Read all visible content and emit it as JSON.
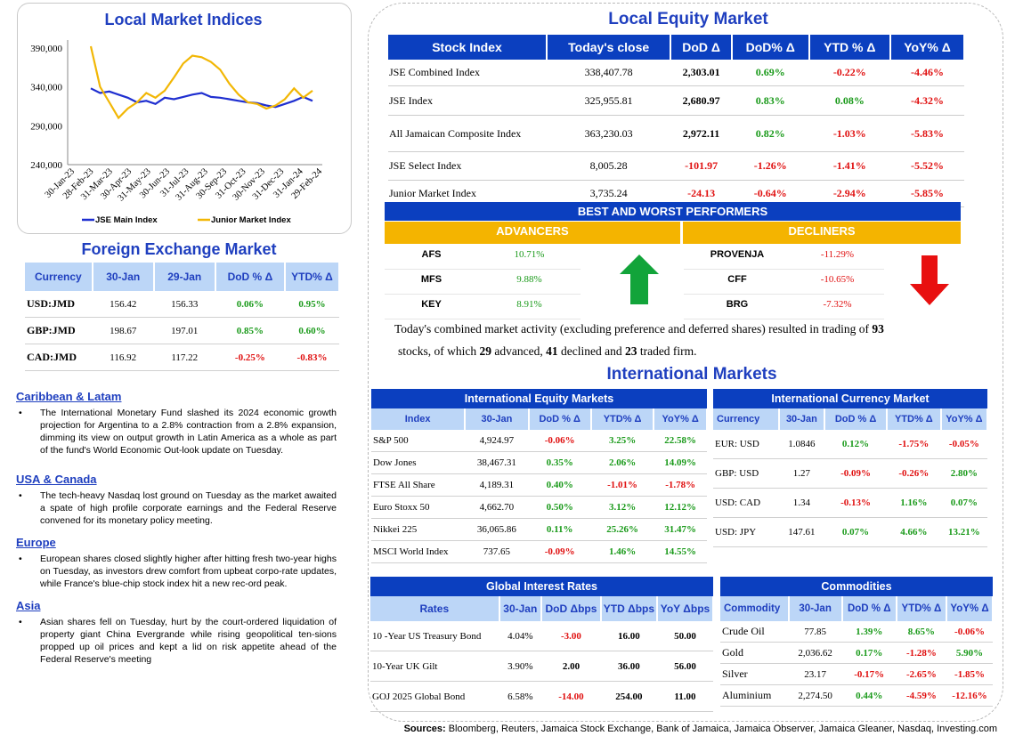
{
  "chart_data": {
    "type": "line",
    "title": "Local Market Indices",
    "y_ticks": [
      "240,000",
      "290,000",
      "340,000",
      "390,000"
    ],
    "ylim": [
      240000,
      400000
    ],
    "x_ticks": [
      "30-Jan-23",
      "28-Feb-23",
      "31-Mar-23",
      "30-Apr-23",
      "31-May-23",
      "30-Jun-23",
      "31-Jul-23",
      "31-Aug-23",
      "30-Sep-23",
      "31-Oct-23",
      "30-Nov-23",
      "31-Dec-23",
      "31-Jan-24",
      "29-Feb-24"
    ],
    "series": [
      {
        "name": "JSE Main Index",
        "color": "#1f2fd0",
        "values": [
          338000,
          332000,
          334000,
          330000,
          326000,
          320000,
          322000,
          318000,
          326000,
          324000,
          327000,
          330000,
          332000,
          327000,
          326000,
          324000,
          322000,
          320000,
          319000,
          316000,
          314000,
          318000,
          322000,
          327000,
          322000
        ]
      },
      {
        "name": "Junior Market Index",
        "color": "#f2b705",
        "values": [
          392000,
          340000,
          320000,
          300000,
          312000,
          320000,
          332000,
          326000,
          335000,
          352000,
          370000,
          380000,
          378000,
          372000,
          362000,
          344000,
          330000,
          320000,
          318000,
          312000,
          316000,
          324000,
          338000,
          326000,
          335000
        ]
      }
    ]
  },
  "fx": {
    "title": "Foreign Exchange Market",
    "headers": [
      "Currency",
      "30-Jan",
      "29-Jan",
      "DoD % Δ",
      "YTD% Δ"
    ],
    "rows": [
      [
        "USD:JMD",
        "156.42",
        "156.33",
        "0.06%",
        "0.95%"
      ],
      [
        "GBP:JMD",
        "198.67",
        "197.01",
        "0.85%",
        "0.60%"
      ],
      [
        "CAD:JMD",
        "116.92",
        "117.22",
        "-0.25%",
        "-0.83%"
      ]
    ]
  },
  "news": [
    {
      "region": "Caribbean & Latam",
      "text": "The International Monetary Fund slashed its 2024 economic growth projection for Argentina to a 2.8% contraction from a 2.8% expansion, dimming its view on output growth in Latin America as a whole as part of the fund's World Economic Out-look update on Tuesday."
    },
    {
      "region": "USA & Canada",
      "text": "The tech-heavy Nasdaq lost ground on Tuesday as the market awaited a spate of high profile corporate earnings and the Federal Reserve convened for its monetary policy meeting."
    },
    {
      "region": "Europe",
      "text": "European shares closed slightly higher after hitting fresh two-year highs on Tuesday, as investors drew comfort from upbeat corpo-rate updates, while France's blue-chip stock index hit a new rec-ord peak."
    },
    {
      "region": "Asia",
      "text": "Asian shares fell on Tuesday, hurt by the court-ordered liquidation of property giant China Evergrande while rising geopolitical ten-sions propped up oil prices and kept a lid on risk appetite ahead of the Federal Reserve's meeting"
    }
  ],
  "equity": {
    "title": "Local Equity Market",
    "headers": [
      "Stock Index",
      "Today's close",
      "DoD  Δ",
      "DoD% Δ",
      "YTD % Δ",
      "YoY% Δ"
    ],
    "rows": [
      [
        "JSE Combined Index",
        "338,407.78",
        "2,303.01",
        "0.69%",
        "-0.22%",
        "-4.46%"
      ],
      [
        "JSE Index",
        "325,955.81",
        "2,680.97",
        "0.83%",
        "0.08%",
        "-4.32%"
      ],
      [
        "All Jamaican Composite Index",
        "363,230.03",
        "2,972.11",
        "0.82%",
        "-1.03%",
        "-5.83%"
      ],
      [
        "JSE Select Index",
        "8,005.28",
        "-101.97",
        "-1.26%",
        "-1.41%",
        "-5.52%"
      ],
      [
        "Junior Market Index",
        "3,735.24",
        "-24.13",
        "-0.64%",
        "-2.94%",
        "-5.85%"
      ]
    ]
  },
  "performers": {
    "title": "BEST AND WORST PERFORMERS",
    "advancers_label": "ADVANCERS",
    "decliners_label": "DECLINERS",
    "advancers": [
      [
        "AFS",
        "10.71%"
      ],
      [
        "MFS",
        "9.88%"
      ],
      [
        "KEY",
        "8.91%"
      ]
    ],
    "decliners": [
      [
        "PROVENJA",
        "-11.29%"
      ],
      [
        "CFF",
        "-10.65%"
      ],
      [
        "BRG",
        "-7.32%"
      ]
    ]
  },
  "summary": {
    "p1": "Today's combined market activity (excluding preference and deferred shares) resulted in trading of ",
    "total": "93",
    "p2": "stocks, of which ",
    "adv": "29",
    "p3": " advanced, ",
    "dec": "41",
    "p4": " declined and ",
    "firm": "23",
    "p5": " traded firm."
  },
  "intl": {
    "title": "International Markets",
    "equity_title": "International Equity Markets",
    "equity_headers": [
      "Index",
      "30-Jan",
      "DoD % Δ",
      "YTD% Δ",
      "YoY% Δ"
    ],
    "equity_rows": [
      [
        "S&P 500",
        "4,924.97",
        "-0.06%",
        "3.25%",
        "22.58%"
      ],
      [
        "Dow Jones",
        "38,467.31",
        "0.35%",
        "2.06%",
        "14.09%"
      ],
      [
        "FTSE All Share",
        "4,189.31",
        "0.40%",
        "-1.01%",
        "-1.78%"
      ],
      [
        "Euro Stoxx 50",
        "4,662.70",
        "0.50%",
        "3.12%",
        "12.12%"
      ],
      [
        "Nikkei 225",
        "36,065.86",
        "0.11%",
        "25.26%",
        "31.47%"
      ],
      [
        "MSCI World Index",
        "737.65",
        "-0.09%",
        "1.46%",
        "14.55%"
      ]
    ],
    "currency_title": "International Currency Market",
    "currency_headers": [
      "Currency",
      "30-Jan",
      "DoD % Δ",
      "YTD% Δ",
      "YoY% Δ"
    ],
    "currency_rows": [
      [
        "EUR: USD",
        "1.0846",
        "0.12%",
        "-1.75%",
        "-0.05%"
      ],
      [
        "GBP: USD",
        "1.27",
        "-0.09%",
        "-0.26%",
        "2.80%"
      ],
      [
        "USD: CAD",
        "1.34",
        "-0.13%",
        "1.16%",
        "0.07%"
      ],
      [
        "USD: JPY",
        "147.61",
        "0.07%",
        "4.66%",
        "13.21%"
      ]
    ],
    "rates_title": "Global Interest Rates",
    "rates_headers": [
      "Rates",
      "30-Jan",
      "DoD Δbps",
      "YTD Δbps",
      "YoY Δbps"
    ],
    "rates_rows": [
      [
        "10 -Year US Treasury Bond",
        "4.04%",
        "-3.00",
        "16.00",
        "50.00"
      ],
      [
        "10-Year UK Gilt",
        "3.90%",
        "2.00",
        "36.00",
        "56.00"
      ],
      [
        "GOJ 2025 Global Bond",
        "6.58%",
        "-14.00",
        "254.00",
        "11.00"
      ]
    ],
    "commod_title": "Commodities",
    "commod_headers": [
      "Commodity",
      "30-Jan",
      "DoD % Δ",
      "YTD% Δ",
      "YoY% Δ"
    ],
    "commod_rows": [
      [
        "Crude Oil",
        "77.85",
        "1.39%",
        "8.65%",
        "-0.06%"
      ],
      [
        "Gold",
        "2,036.62",
        "0.17%",
        "-1.28%",
        "5.90%"
      ],
      [
        "Silver",
        "23.17",
        "-0.17%",
        "-2.65%",
        "-1.85%"
      ],
      [
        "Aluminium",
        "2,274.50",
        "0.44%",
        "-4.59%",
        "-12.16%"
      ]
    ]
  },
  "sources": {
    "label": "Sources:",
    "text": " Bloomberg, Reuters, Jamaica Stock Exchange, Bank of Jamaica, Jamaica Observer, Jamaica Gleaner, Nasdaq, Investing.com"
  }
}
